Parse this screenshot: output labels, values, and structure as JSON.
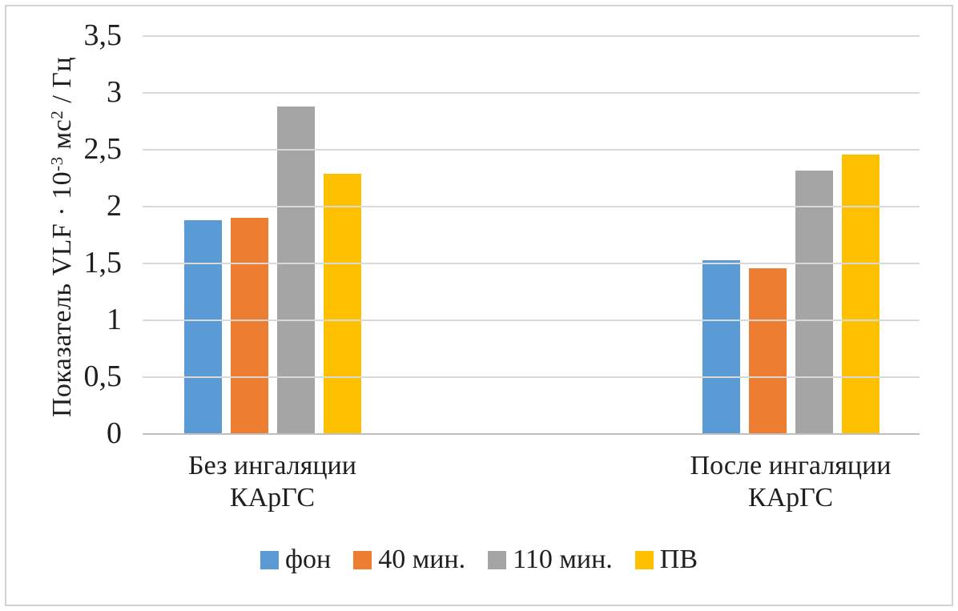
{
  "chart_data": {
    "type": "bar",
    "title": "",
    "categories": [
      {
        "line1": "Без ингаляции",
        "line2": "КАрГС"
      },
      {
        "line1": "После ингаляции",
        "line2": "КАрГС"
      }
    ],
    "series": [
      {
        "name": "фон",
        "color": "#5B9BD5",
        "values": [
          1.88,
          1.53
        ]
      },
      {
        "name": "40 мин.",
        "color": "#ED7D31",
        "values": [
          1.9,
          1.46
        ]
      },
      {
        "name": "110 мин.",
        "color": "#A5A5A5",
        "values": [
          2.88,
          2.32
        ]
      },
      {
        "name": "ПВ",
        "color": "#FFC000",
        "values": [
          2.29,
          2.46
        ]
      }
    ],
    "y_axis": {
      "min": 0,
      "max": 3.5,
      "ticks": [
        {
          "value": 3.5,
          "label": "3,5"
        },
        {
          "value": 3,
          "label": "3"
        },
        {
          "value": 2.5,
          "label": "2,5"
        },
        {
          "value": 2,
          "label": "2"
        },
        {
          "value": 1.5,
          "label": "1,5"
        },
        {
          "value": 1,
          "label": "1"
        },
        {
          "value": 0.5,
          "label": "0,5"
        },
        {
          "value": 0,
          "label": "0"
        }
      ],
      "title_parts": {
        "t1": "Показатель VLF · 10",
        "sup1": "-3",
        "t2": " мс",
        "sup2": "2",
        "t3": " / Гц"
      }
    },
    "grid": true,
    "legend_position": "bottom",
    "colors": {
      "gridline": "#d9d9d9",
      "axis_line": "#bfbfbf",
      "frame_border": "#d5d3d1",
      "text": "#1f1f1f",
      "background": "#ffffff"
    }
  }
}
